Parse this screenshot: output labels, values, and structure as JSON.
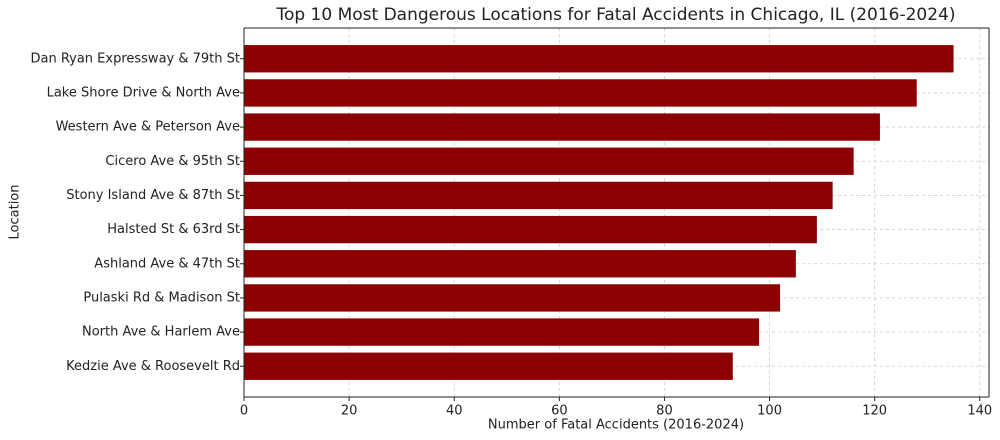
{
  "chart_data": {
    "type": "barh",
    "title": "Top 10 Most Dangerous Locations for Fatal Accidents in Chicago, IL (2016-2024)",
    "x_label": "Number of Fatal Accidents (2016-2024)",
    "y_label": "Location",
    "categories": [
      "Dan Ryan Expressway & 79th St",
      "Lake Shore Drive & North Ave",
      "Western Ave & Peterson Ave",
      "Cicero Ave & 95th St",
      "Stony Island Ave & 87th St",
      "Halsted St & 63rd St",
      "Ashland Ave & 47th St",
      "Pulaski Rd & Madison St",
      "North Ave & Harlem Ave",
      "Kedzie Ave & Roosevelt Rd"
    ],
    "values": [
      135,
      128,
      121,
      116,
      112,
      109,
      105,
      102,
      98,
      93
    ],
    "color": "#8b0000",
    "xlim": [
      0,
      141.75
    ],
    "xticks": [
      0,
      20,
      40,
      60,
      80,
      100,
      120,
      140
    ],
    "grid": true
  }
}
